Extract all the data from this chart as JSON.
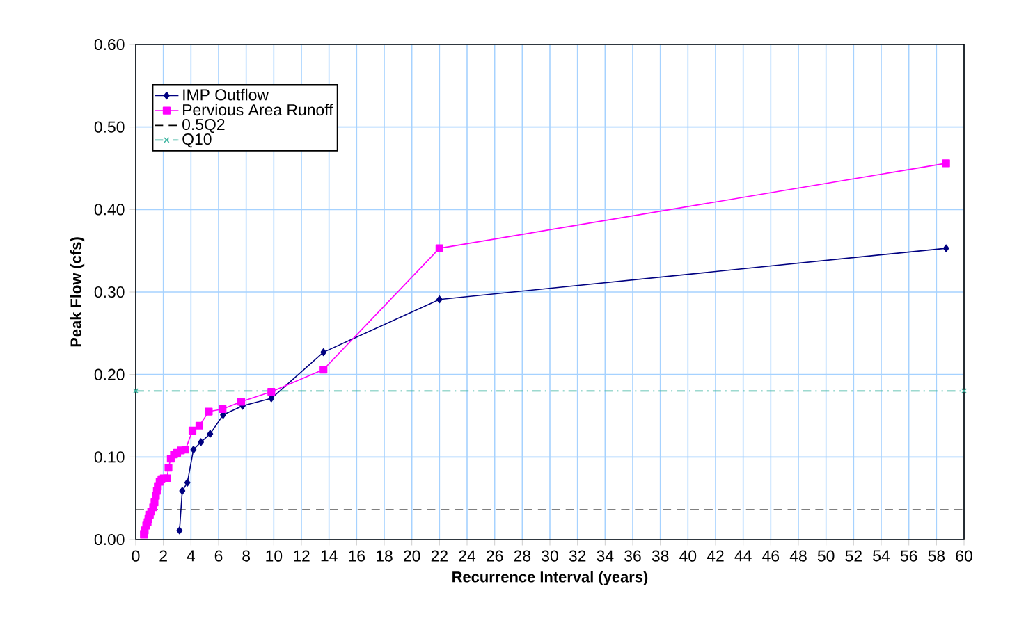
{
  "chart_data": {
    "type": "line",
    "xlabel": "Recurrence Interval (years)",
    "ylabel": "Peak Flow (cfs)",
    "xlim": [
      0,
      60
    ],
    "ylim": [
      0,
      0.6
    ],
    "xticks": [
      0,
      2,
      4,
      6,
      8,
      10,
      12,
      14,
      16,
      18,
      20,
      22,
      24,
      26,
      28,
      30,
      32,
      34,
      36,
      38,
      40,
      42,
      44,
      46,
      48,
      50,
      52,
      54,
      56,
      58,
      60
    ],
    "yticks": [
      {
        "value": 0,
        "label": "0.00"
      },
      {
        "value": 0.1,
        "label": "0.10"
      },
      {
        "value": 0.2,
        "label": "0.20"
      },
      {
        "value": 0.3,
        "label": "0.30"
      },
      {
        "value": 0.4,
        "label": "0.40"
      },
      {
        "value": 0.5,
        "label": "0.50"
      },
      {
        "value": 0.6,
        "label": "0.60"
      }
    ],
    "grid": true,
    "legend": "top left",
    "series": [
      {
        "name": "IMP Outflow",
        "color": "#000080",
        "marker": "diamond",
        "line_style": "solid",
        "x": [
          3.17,
          3.37,
          3.74,
          4.18,
          4.72,
          5.39,
          6.33,
          7.74,
          9.82,
          13.6,
          22.0,
          58.7
        ],
        "values": [
          0.011,
          0.059,
          0.069,
          0.109,
          0.118,
          0.128,
          0.151,
          0.162,
          0.171,
          0.227,
          0.291,
          0.353
        ]
      },
      {
        "name": "Pervious Area Runoff",
        "color": "#ff00ff",
        "marker": "square",
        "line_style": "solid",
        "x": [
          0.59,
          0.65,
          0.76,
          0.86,
          0.92,
          1.02,
          1.12,
          1.26,
          1.36,
          1.46,
          1.53,
          1.6,
          1.73,
          1.86,
          2.03,
          2.27,
          2.37,
          2.54,
          2.77,
          3.0,
          3.27,
          3.6,
          4.11,
          4.61,
          5.29,
          6.29,
          7.64,
          9.82,
          13.6,
          22.0,
          58.7
        ],
        "values": [
          0.006,
          0.011,
          0.017,
          0.021,
          0.025,
          0.03,
          0.034,
          0.039,
          0.045,
          0.053,
          0.059,
          0.064,
          0.07,
          0.073,
          0.074,
          0.074,
          0.087,
          0.098,
          0.103,
          0.105,
          0.108,
          0.109,
          0.132,
          0.138,
          0.155,
          0.158,
          0.167,
          0.179,
          0.206,
          0.353,
          0.456
        ]
      },
      {
        "name": "0.5Q2",
        "color": "#000000",
        "marker": "none",
        "line_style": "dashed",
        "x": [
          0,
          60
        ],
        "values": [
          0.036,
          0.036
        ]
      },
      {
        "name": "Q10",
        "color": "#3cb4a0",
        "marker": "cross",
        "line_style": "dashdot",
        "x": [
          0,
          60
        ],
        "values": [
          0.18,
          0.18
        ]
      }
    ]
  }
}
